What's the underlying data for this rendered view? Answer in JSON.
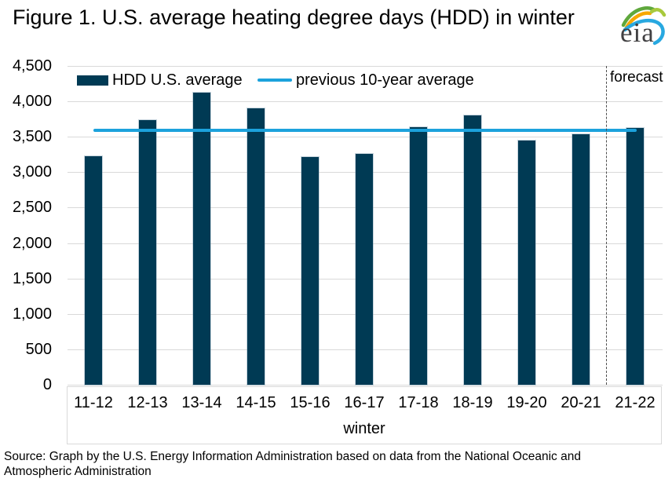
{
  "header": {
    "title": "Figure 1. U.S. average heating degree days (HDD) in winter",
    "logo_text": "eia"
  },
  "legend": {
    "bar_label": "HDD U.S. average",
    "line_label": "previous 10-year average"
  },
  "chart_data": {
    "type": "bar",
    "title": "Figure 1. U.S. average heating degree days (HDD) in winter",
    "categories": [
      "11-12",
      "12-13",
      "13-14",
      "14-15",
      "15-16",
      "16-17",
      "17-18",
      "18-19",
      "19-20",
      "20-21",
      "21-22"
    ],
    "series": [
      {
        "name": "HDD U.S. average",
        "type": "bar",
        "color": "#003a54",
        "values": [
          3230,
          3730,
          4120,
          3900,
          3210,
          3260,
          3630,
          3800,
          3450,
          3540,
          3620
        ]
      },
      {
        "name": "previous 10-year average",
        "type": "line",
        "color": "#1ca2dc",
        "value": 3590
      }
    ],
    "xlabel": "winter",
    "ylabel": "",
    "ylim": [
      0,
      4500
    ],
    "ytick_step": 500,
    "grid": true,
    "legend_position": "top-left-inside",
    "forecast_label": "forecast",
    "forecast_start_category": "21-22"
  },
  "footer": {
    "source_line1": "Source: Graph by the U.S. Energy Information Administration based on data from the National Oceanic and",
    "source_line2": "Atmospheric Administration"
  },
  "colors": {
    "bar": "#003a54",
    "line": "#1ca2dc",
    "gridline": "#d9d9d9",
    "forecast_divider": "#4d4d4d",
    "text": "#000000",
    "logo_text": "#414042"
  }
}
